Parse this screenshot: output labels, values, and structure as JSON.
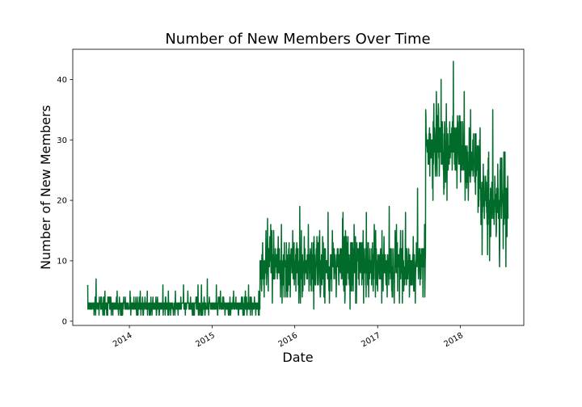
{
  "chart_data": {
    "type": "line",
    "title": "Number of New Members Over Time",
    "xlabel": "Date",
    "ylabel": "Number of New Members",
    "x_ticks": [
      "2014",
      "2015",
      "2016",
      "2017",
      "2018"
    ],
    "y_ticks": [
      "0",
      "10",
      "20",
      "30",
      "40"
    ],
    "xlim": [
      "2013-04-26",
      "2018-10-08"
    ],
    "ylim": [
      -0.7,
      45
    ],
    "grid": false,
    "legend": "none",
    "series_color": "#006b2a",
    "series": [
      {
        "x": [
          "2013-07",
          "2013-08",
          "2013-09",
          "2013-10",
          "2013-11",
          "2013-12",
          "2014-01",
          "2014-02",
          "2014-03",
          "2014-04",
          "2014-05",
          "2014-06",
          "2014-07",
          "2014-08",
          "2014-09",
          "2014-10",
          "2014-11",
          "2014-12",
          "2015-01",
          "2015-02",
          "2015-03",
          "2015-04",
          "2015-05",
          "2015-06",
          "2015-07",
          "2015-08",
          "2015-09",
          "2015-10",
          "2015-11",
          "2015-12",
          "2016-01",
          "2016-02",
          "2016-03",
          "2016-04",
          "2016-05",
          "2016-06",
          "2016-07",
          "2016-08",
          "2016-09",
          "2016-10",
          "2016-11",
          "2016-12",
          "2017-01",
          "2017-02",
          "2017-03",
          "2017-04",
          "2017-05",
          "2017-06",
          "2017-07",
          "2017-08",
          "2017-09",
          "2017-10",
          "2017-11",
          "2017-12",
          "2018-01",
          "2018-02",
          "2018-03",
          "2018-04",
          "2018-05",
          "2018-06",
          "2018-07"
        ],
        "y_mean": [
          2.5,
          2.6,
          2.4,
          2.5,
          2.4,
          2.5,
          2.6,
          2.5,
          2.4,
          2.5,
          2.6,
          2.5,
          2.4,
          2.5,
          2.6,
          2.5,
          2.4,
          2.5,
          2.4,
          2.5,
          2.4,
          2.5,
          2.6,
          2.5,
          2.5,
          9.2,
          9.5,
          8.8,
          9.1,
          9.4,
          8.6,
          9.0,
          9.6,
          9.2,
          8.7,
          9.5,
          9.8,
          9.3,
          9.0,
          9.6,
          8.9,
          9.4,
          9.2,
          9.0,
          9.5,
          8.8,
          9.6,
          9.1,
          9.3,
          29,
          29.5,
          28.6,
          28.9,
          29.8,
          27.2,
          26.5,
          25.8,
          20.4,
          19.6,
          18.5,
          18.8
        ],
        "y_min": [
          1,
          1,
          1,
          1,
          1,
          1,
          1,
          1,
          1,
          1,
          1,
          1,
          1,
          1,
          1,
          1,
          1,
          1,
          1,
          1,
          1,
          1,
          1,
          1,
          1,
          4,
          3,
          4,
          3,
          4,
          3,
          4,
          2,
          4,
          3,
          3,
          4,
          3,
          2,
          3,
          4,
          4,
          3,
          4,
          3,
          3,
          4,
          3,
          4,
          22,
          20,
          21,
          20,
          22,
          20,
          20,
          18,
          11,
          10,
          9,
          9
        ],
        "y_max": [
          6,
          7,
          5,
          4,
          5,
          4,
          5,
          5,
          5,
          4,
          6,
          5,
          5,
          6,
          5,
          6,
          6,
          7,
          6,
          5,
          4,
          5,
          5,
          6,
          5,
          15,
          17,
          14,
          16,
          15,
          19,
          14,
          16,
          15,
          18,
          15,
          17,
          18,
          16,
          15,
          18,
          16,
          15,
          19,
          16,
          15,
          18,
          22,
          16,
          35,
          38,
          40,
          34,
          43,
          38,
          35,
          32,
          26,
          35,
          27,
          28
        ]
      }
    ]
  }
}
